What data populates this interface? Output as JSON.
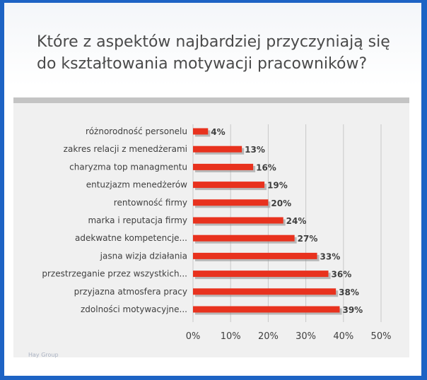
{
  "title": "Które z aspektów najbardziej przyczyniają się do kształtowania motywacji pracowników?",
  "source": "Hay Group",
  "colors": {
    "bar": "#e8321e",
    "bar_shadow": "#8a8a8a",
    "background": "#1d63c4",
    "panel": "#f0f0f0"
  },
  "chart_data": {
    "type": "bar",
    "orientation": "horizontal",
    "title": "",
    "xlabel": "",
    "ylabel": "",
    "xlim": [
      0,
      50
    ],
    "x_ticks": [
      "0%",
      "10%",
      "20%",
      "30%",
      "40%",
      "50%"
    ],
    "grid": "vertical",
    "categories": [
      "różnorodność personelu",
      "zakres relacji z menedżerami",
      "charyzma top managmentu",
      "entuzjazm menedżerów",
      "rentowność firmy",
      "marka i reputacja firmy",
      "adekwatne kompetencje...",
      "jasna wizja działania",
      "przestrzeganie przez wszystkich...",
      "przyjazna atmosfera pracy",
      "zdolności motywacyjne..."
    ],
    "values": [
      4,
      13,
      16,
      19,
      20,
      24,
      27,
      33,
      36,
      38,
      39
    ],
    "labels": [
      "4%",
      "13%",
      "16%",
      "19%",
      "20%",
      "24%",
      "27%",
      "33%",
      "36%",
      "38%",
      "39%"
    ]
  }
}
